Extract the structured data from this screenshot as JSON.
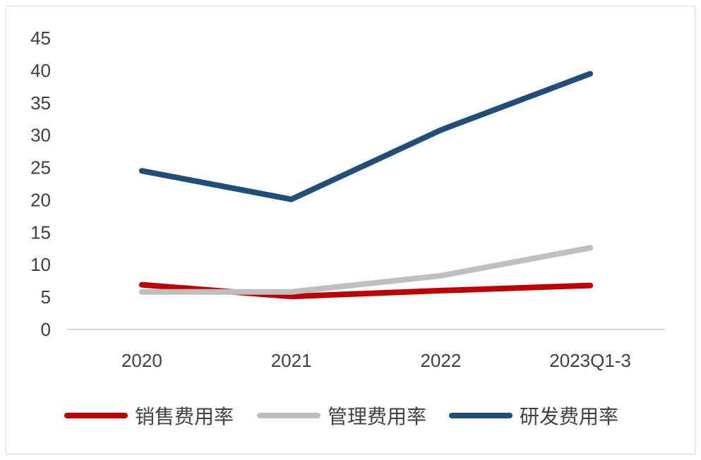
{
  "chart_data": {
    "type": "line",
    "title": "",
    "xlabel": "",
    "ylabel": "",
    "categories": [
      "2020",
      "2021",
      "2022",
      "2023Q1-3"
    ],
    "ylim": [
      0,
      45
    ],
    "yticks": [
      0,
      5,
      10,
      15,
      20,
      25,
      30,
      35,
      40,
      45
    ],
    "grid": false,
    "legend_position": "bottom",
    "series": [
      {
        "name": "销售费用率",
        "color": "#c00000",
        "values": [
          6.9,
          5.1,
          6.0,
          6.8
        ]
      },
      {
        "name": "管理费用率",
        "color": "#bfbfbf",
        "values": [
          5.8,
          5.8,
          8.3,
          12.6
        ]
      },
      {
        "name": "研发费用率",
        "color": "#1f4e79",
        "values": [
          24.5,
          20.1,
          30.8,
          39.5
        ]
      }
    ]
  }
}
